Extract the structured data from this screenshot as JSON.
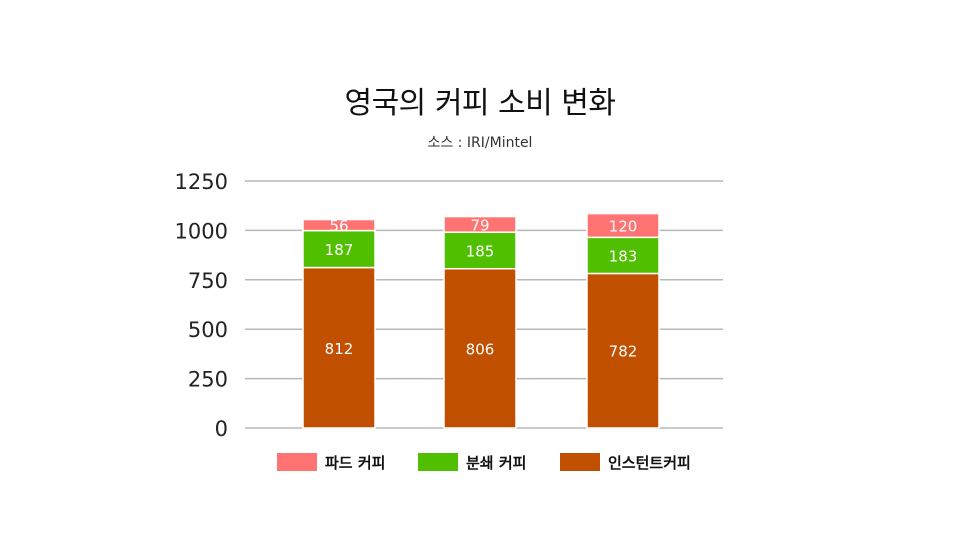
{
  "title": "영국의 커피 소비 변화",
  "subtitle": "소스 : IRI/Mintel",
  "colors": {
    "instant": "#c04f00",
    "ground": "#4fbf00",
    "pod": "#ff7373",
    "grid": "#b8b8b8",
    "axis_text": "#222222",
    "bar_label": "#ffffff"
  },
  "chart_data": {
    "type": "bar",
    "stacked": true,
    "categories": [
      "",
      "",
      ""
    ],
    "series": [
      {
        "name": "인스턴트커피",
        "color": "#c04f00",
        "values": [
          812,
          806,
          782
        ]
      },
      {
        "name": "분쇄 커피",
        "color": "#4fbf00",
        "values": [
          187,
          185,
          183
        ]
      },
      {
        "name": "파드 커피",
        "color": "#ff7373",
        "values": [
          56,
          79,
          120
        ]
      }
    ],
    "ylim": [
      0,
      1250
    ],
    "yticks": [
      0,
      250,
      500,
      750,
      1000,
      1250
    ],
    "grid": true,
    "legend_position": "bottom",
    "legend_order": [
      "파드 커피",
      "분쇄 커피",
      "인스턴트커피"
    ],
    "data_labels": true
  }
}
